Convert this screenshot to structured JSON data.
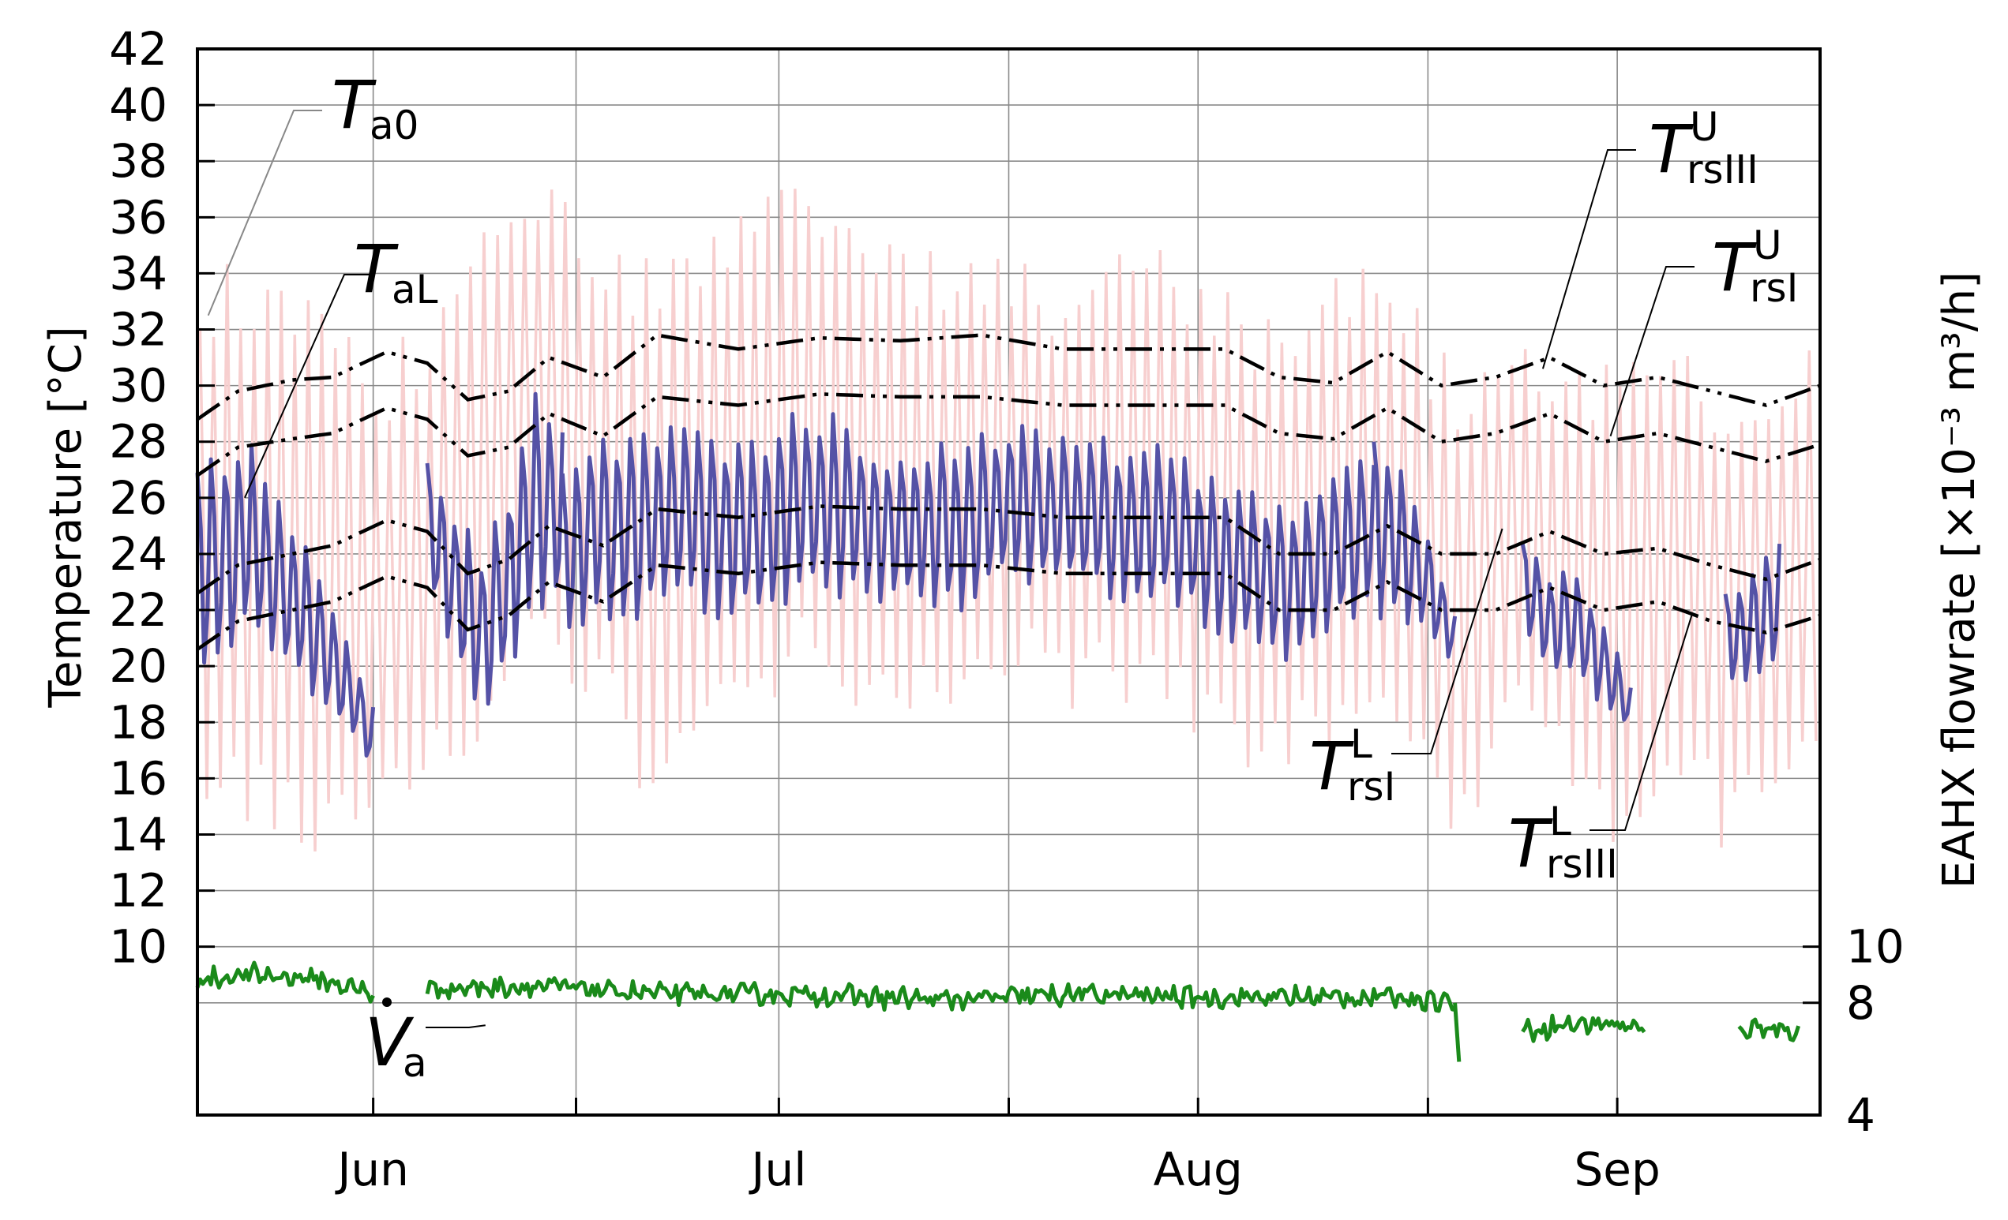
{
  "chart_data": {
    "type": "line",
    "title": "",
    "xlabel": "",
    "ylabel": "Temperature [°C]",
    "y2label": "EAHX flowrate [×10⁻³ m³/h]",
    "x_day_range": [
      0,
      120
    ],
    "ylim": [
      4,
      42
    ],
    "y_ticks": [
      "10",
      "12",
      "14",
      "16",
      "18",
      "20",
      "22",
      "24",
      "26",
      "28",
      "30",
      "32",
      "34",
      "36",
      "38",
      "40",
      "42"
    ],
    "y2_ticks": [
      "4",
      "8",
      "10"
    ],
    "months": [
      {
        "label": "Jun",
        "day": 13
      },
      {
        "label": "Jul",
        "day": 43
      },
      {
        "label": "Aug",
        "day": 74
      },
      {
        "label": "Sep",
        "day": 105
      }
    ],
    "minor_x_days": [
      28,
      60,
      91
    ],
    "grid": true,
    "colors": {
      "Ta0": "#f7cfcf",
      "TaL": "#5552a6",
      "Va": "#1a8a1a",
      "bounds": "#000000",
      "annotation_gray": "#888888"
    },
    "series_Ta0": {
      "name": "Ta0",
      "day": [
        1,
        5,
        9,
        13,
        17,
        21,
        25,
        29,
        33,
        37,
        41,
        45,
        49,
        53,
        57,
        61,
        65,
        69,
        73,
        77,
        81,
        85,
        89,
        93,
        97,
        101,
        105,
        109,
        113,
        117,
        120
      ],
      "mid": [
        25,
        24,
        23,
        22,
        24,
        27,
        30,
        27,
        25,
        26,
        27,
        28,
        27,
        26,
        27,
        27,
        26,
        27,
        26,
        25,
        24,
        26,
        25,
        22,
        25,
        23,
        22,
        24,
        22,
        23,
        24
      ],
      "amp": [
        9,
        9,
        9,
        8,
        8,
        9,
        8,
        8,
        9,
        8,
        10,
        8,
        8,
        8,
        8,
        7,
        7,
        8,
        8,
        8,
        7,
        8,
        8,
        8,
        7,
        7,
        8,
        7,
        8,
        8,
        8
      ]
    },
    "series_TaL": {
      "name": "TaL",
      "segments": [
        {
          "day": [
            0,
            2,
            4,
            6,
            8,
            10,
            12,
            13
          ],
          "mid": [
            23.5,
            24,
            24.5,
            23,
            22,
            20,
            18.5,
            17.5
          ],
          "amp": [
            3.5,
            4,
            3.5,
            3,
            3,
            2,
            1.5,
            1.2
          ]
        },
        {
          "day": [
            17,
            19,
            21,
            23,
            25,
            27
          ],
          "mid": [
            25,
            23,
            21,
            23,
            26,
            25
          ],
          "amp": [
            2.5,
            3,
            3,
            3.5,
            4,
            3.5
          ]
        },
        {
          "day": [
            27,
            30,
            33,
            36,
            39,
            42,
            45,
            48,
            51,
            54,
            57,
            60,
            63,
            66,
            69,
            72,
            75,
            78,
            81,
            84,
            87
          ],
          "mid": [
            24,
            25,
            25,
            25.5,
            25,
            25,
            26,
            25.5,
            25,
            25,
            25,
            26,
            25.5,
            25.5,
            25,
            25,
            24,
            23.5,
            23,
            24,
            25
          ],
          "amp": [
            3,
            3.5,
            3.5,
            3.5,
            3.5,
            3.5,
            3.5,
            3.5,
            3,
            3,
            3.5,
            3,
            3,
            3,
            3,
            3,
            3,
            3,
            3,
            3,
            3
          ]
        },
        {
          "day": [
            87,
            89,
            91,
            93
          ],
          "mid": [
            25,
            24.5,
            23,
            21
          ],
          "amp": [
            3.5,
            3,
            2,
            1
          ]
        },
        {
          "day": [
            98,
            100,
            102,
            104,
            106
          ],
          "mid": [
            23,
            21.5,
            21.5,
            20,
            18.5
          ],
          "amp": [
            2,
            2,
            2,
            1.5,
            1
          ]
        },
        {
          "day": [
            113,
            115,
            117
          ],
          "mid": [
            21,
            21.5,
            22.5
          ],
          "amp": [
            2,
            2,
            2.5
          ]
        }
      ]
    },
    "series_TrsIII_U": {
      "name": "TrsIII^U",
      "day": [
        0,
        3,
        7,
        10,
        14,
        17,
        20,
        23,
        26,
        30,
        34,
        40,
        46,
        52,
        58,
        64,
        70,
        76,
        80,
        84,
        88,
        92,
        96,
        100,
        104,
        108,
        112,
        116,
        120
      ],
      "values": [
        28.8,
        29.8,
        30.2,
        30.3,
        31.2,
        30.8,
        29.5,
        29.8,
        31,
        30.3,
        31.8,
        31.3,
        31.7,
        31.6,
        31.8,
        31.3,
        31.3,
        31.3,
        30.3,
        30.1,
        31.2,
        30,
        30.3,
        31,
        30,
        30.3,
        29.8,
        29.3,
        30
      ]
    },
    "series_TrsI_U": {
      "name": "TrsI^U",
      "day": [
        0,
        3,
        7,
        10,
        14,
        17,
        20,
        23,
        26,
        30,
        34,
        40,
        46,
        52,
        58,
        64,
        70,
        76,
        80,
        84,
        88,
        92,
        96,
        100,
        104,
        108,
        112,
        116,
        120
      ],
      "values": [
        26.8,
        27.8,
        28.1,
        28.3,
        29.2,
        28.8,
        27.5,
        27.8,
        29,
        28.2,
        29.6,
        29.3,
        29.7,
        29.6,
        29.6,
        29.3,
        29.3,
        29.3,
        28.3,
        28.1,
        29.2,
        28,
        28.3,
        29,
        28,
        28.3,
        27.8,
        27.3,
        27.9
      ]
    },
    "series_TrsI_L": {
      "name": "TrsI^L",
      "day": [
        0,
        3,
        7,
        10,
        14,
        17,
        20,
        23,
        26,
        30,
        34,
        40,
        46,
        52,
        58,
        64,
        70,
        76,
        80,
        84,
        88,
        92,
        96,
        100,
        104,
        108,
        112,
        116,
        120
      ],
      "values": [
        22.6,
        23.6,
        24,
        24.3,
        25.2,
        24.8,
        23.3,
        23.8,
        25,
        24.3,
        25.6,
        25.3,
        25.7,
        25.6,
        25.6,
        25.3,
        25.3,
        25.3,
        24,
        24,
        25,
        24,
        24,
        24.8,
        24,
        24.2,
        23.6,
        23.1,
        23.8
      ]
    },
    "series_TrsIII_L": {
      "name": "TrsIII^L",
      "day": [
        0,
        3,
        7,
        10,
        14,
        17,
        20,
        23,
        26,
        30,
        34,
        40,
        46,
        52,
        58,
        64,
        70,
        76,
        80,
        84,
        88,
        92,
        96,
        100,
        104,
        108,
        112,
        116,
        120
      ],
      "values": [
        20.6,
        21.6,
        22,
        22.3,
        23.2,
        22.8,
        21.3,
        21.8,
        23,
        22.3,
        23.6,
        23.3,
        23.7,
        23.6,
        23.6,
        23.3,
        23.3,
        23.3,
        22,
        22,
        23,
        22,
        22,
        22.8,
        22,
        22.3,
        21.6,
        21.2,
        21.8
      ]
    },
    "series_Va": {
      "name": "Va",
      "unit_axis": "right",
      "segments": [
        {
          "day": [
            0,
            4,
            8,
            11,
            13
          ],
          "values": [
            8.8,
            9,
            8.9,
            8.6,
            8.3
          ]
        },
        {
          "day": [
            17,
            25,
            35,
            45,
            55,
            65,
            75,
            85,
            90,
            93
          ],
          "values": [
            8.5,
            8.6,
            8.3,
            8.3,
            8.1,
            8.3,
            8.2,
            8.2,
            8.2,
            8
          ]
        },
        {
          "day": [
            93,
            93.3
          ],
          "values": [
            8,
            5.9
          ]
        },
        {
          "day": [
            98,
            101,
            104,
            107
          ],
          "values": [
            7,
            7.2,
            7.3,
            7
          ]
        },
        {
          "day": [
            114,
            116,
            118.5
          ],
          "values": [
            7,
            7.2,
            6.9
          ]
        }
      ]
    },
    "annotations": [
      {
        "key": "Ta0",
        "sym": "T",
        "sub": "a0",
        "sup": "",
        "anchor_day": 0.8,
        "anchor_value": 32.5
      },
      {
        "key": "TaL",
        "sym": "T",
        "sub": "aL",
        "sup": "",
        "anchor_day": 3.5,
        "anchor_value": 26
      },
      {
        "key": "TrsIII_U",
        "sym": "T",
        "sub": "rsIII",
        "sup": "U",
        "anchor_day": 99.5,
        "anchor_value": 30.6
      },
      {
        "key": "TrsI_U",
        "sym": "T",
        "sub": "rsI",
        "sup": "U",
        "anchor_day": 104.5,
        "anchor_value": 28.2
      },
      {
        "key": "TrsI_L",
        "sym": "T",
        "sub": "rsI",
        "sup": "L",
        "anchor_day": 96.5,
        "anchor_value": 24.9
      },
      {
        "key": "TrsIII_L",
        "sym": "T",
        "sub": "rsIII",
        "sup": "L",
        "anchor_day": 110.5,
        "anchor_value": 21.8
      },
      {
        "key": "Va",
        "sym": "V",
        "sub": "a",
        "sup": "",
        "anchor_day": 21.3,
        "anchor_value": 7.2
      }
    ]
  }
}
